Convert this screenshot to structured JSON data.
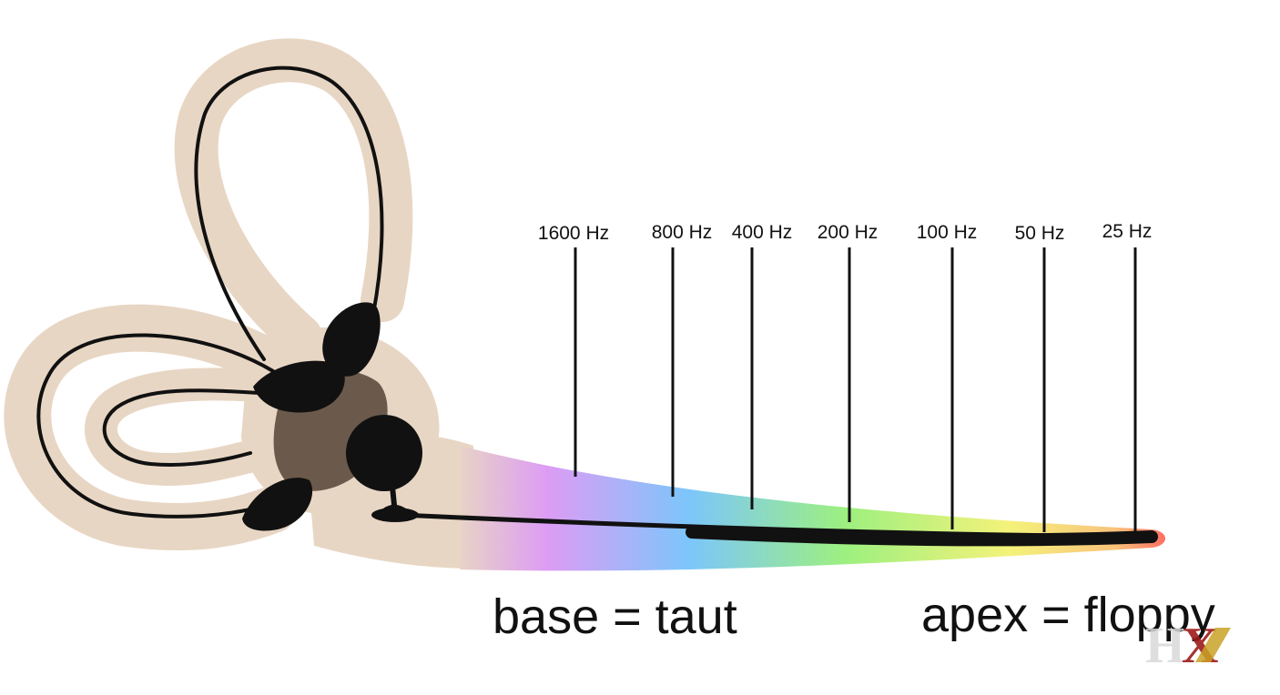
{
  "frequency_markers": [
    {
      "label": "1600 Hz",
      "value_hz": 1600
    },
    {
      "label": "800 Hz",
      "value_hz": 800
    },
    {
      "label": "400 Hz",
      "value_hz": 400
    },
    {
      "label": "200 Hz",
      "value_hz": 200
    },
    {
      "label": "100 Hz",
      "value_hz": 100
    },
    {
      "label": "50 Hz",
      "value_hz": 50
    },
    {
      "label": "25 Hz",
      "value_hz": 25
    }
  ],
  "labels": {
    "base": "base = taut",
    "apex": "apex = floppy"
  },
  "logo": {
    "text": "HX",
    "colors": {
      "h": "#d9d9d9",
      "x": "#9e1b1b",
      "x_accent": "#c9a227"
    }
  },
  "colors": {
    "tissue": "#e8d6c4",
    "vestibule": "#6b5a4c",
    "outline": "#111111",
    "spectrum": [
      "#e8d6c4",
      "#d99af5",
      "#7cc6fb",
      "#9df07f",
      "#f4f27a",
      "#ff7a6a"
    ]
  }
}
